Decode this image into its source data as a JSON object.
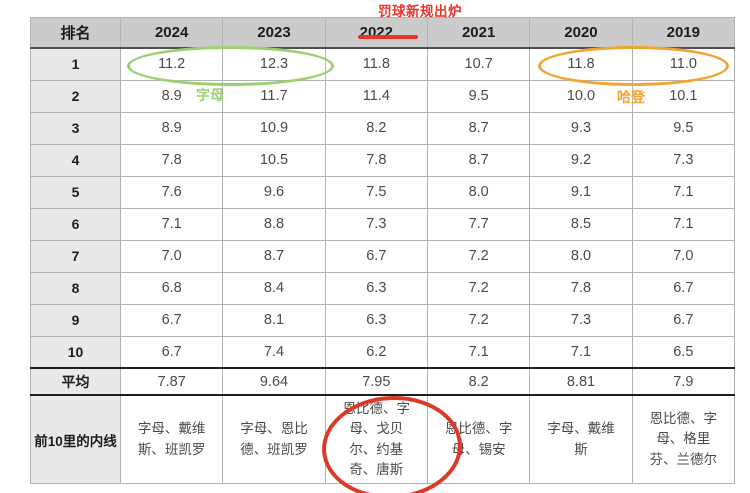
{
  "chart_data": {
    "type": "table",
    "title": "罚球新规出炉",
    "columns": [
      "排名",
      "2024",
      "2023",
      "2022",
      "2021",
      "2020",
      "2019"
    ],
    "rows": [
      {
        "rank": "1",
        "values": [
          "11.2",
          "12.3",
          "11.8",
          "10.7",
          "11.8",
          "11.0"
        ]
      },
      {
        "rank": "2",
        "values": [
          "8.9",
          "11.7",
          "11.4",
          "9.5",
          "10.0",
          "10.1"
        ]
      },
      {
        "rank": "3",
        "values": [
          "8.9",
          "10.9",
          "8.2",
          "8.7",
          "9.3",
          "9.5"
        ]
      },
      {
        "rank": "4",
        "values": [
          "7.8",
          "10.5",
          "7.8",
          "8.7",
          "9.2",
          "7.3"
        ]
      },
      {
        "rank": "5",
        "values": [
          "7.6",
          "9.6",
          "7.5",
          "8.0",
          "9.1",
          "7.1"
        ]
      },
      {
        "rank": "6",
        "values": [
          "7.1",
          "8.8",
          "7.3",
          "7.7",
          "8.5",
          "7.1"
        ]
      },
      {
        "rank": "7",
        "values": [
          "7.0",
          "8.7",
          "6.7",
          "7.2",
          "8.0",
          "7.0"
        ]
      },
      {
        "rank": "8",
        "values": [
          "6.8",
          "8.4",
          "6.3",
          "7.2",
          "7.8",
          "6.7"
        ]
      },
      {
        "rank": "9",
        "values": [
          "6.7",
          "8.1",
          "6.3",
          "7.2",
          "7.3",
          "6.7"
        ]
      },
      {
        "rank": "10",
        "values": [
          "6.7",
          "7.4",
          "6.2",
          "7.1",
          "7.1",
          "6.5"
        ]
      }
    ],
    "average_row": {
      "label": "平均",
      "values": [
        "7.87",
        "9.64",
        "7.95",
        "8.2",
        "8.81",
        "7.9"
      ]
    },
    "insiders_row": {
      "label": "前10里的内线",
      "values": [
        "字母、戴维斯、班凯罗",
        "字母、恩比德、班凯罗",
        "恩比德、字母、戈贝尔、约基奇、唐斯",
        "恩比德、字母、锡安",
        "字母、戴维斯",
        "恩比德、字母、格里芬、兰德尔"
      ]
    },
    "annotations": {
      "title": "罚球新规出炉",
      "green_label": "字母",
      "orange_label": "哈登"
    },
    "colors": {
      "annotation_red": "#e8352a",
      "annotation_green": "#9bd06f",
      "annotation_orange": "#f0a433",
      "header_bg": "#cbcbcb",
      "rank_column_bg": "#e9e9e9"
    }
  }
}
